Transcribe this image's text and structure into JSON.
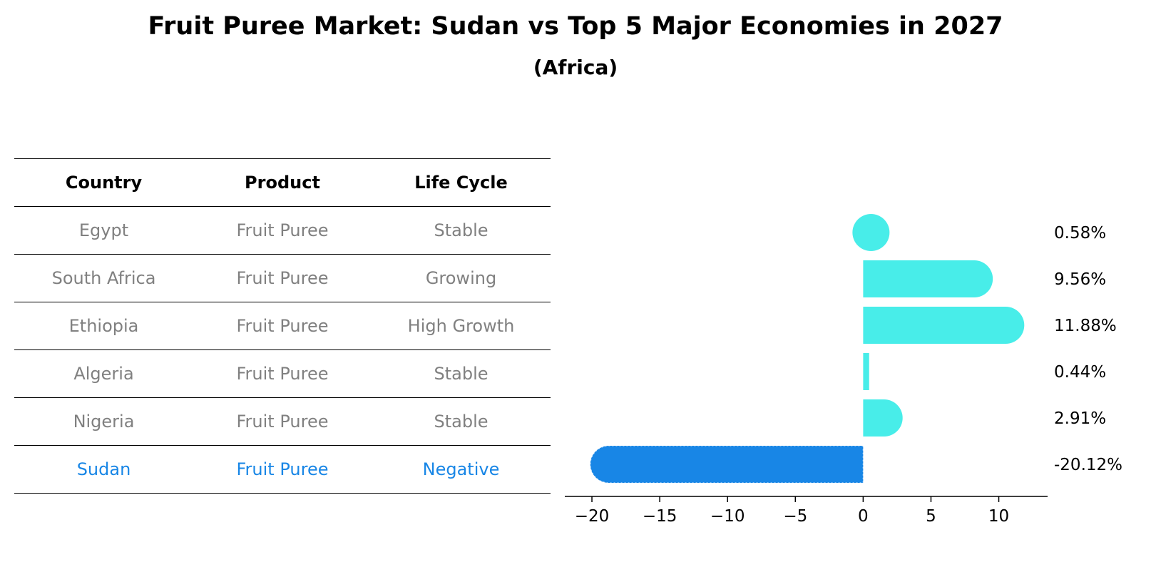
{
  "title": "Fruit Puree Market: Sudan vs Top 5 Major Economies in 2027",
  "subtitle": "(Africa)",
  "table": {
    "headers": [
      "Country",
      "Product",
      "Life Cycle"
    ],
    "rows": [
      {
        "country": "Egypt",
        "product": "Fruit Puree",
        "life_cycle": "Stable"
      },
      {
        "country": "South Africa",
        "product": "Fruit Puree",
        "life_cycle": "Growing"
      },
      {
        "country": "Ethiopia",
        "product": "Fruit Puree",
        "life_cycle": "High Growth"
      },
      {
        "country": "Algeria",
        "product": "Fruit Puree",
        "life_cycle": "Stable"
      },
      {
        "country": "Nigeria",
        "product": "Fruit Puree",
        "life_cycle": "Stable"
      },
      {
        "country": "Sudan",
        "product": "Fruit Puree",
        "life_cycle": "Negative"
      }
    ],
    "colors": {
      "text": "#808080",
      "highlight": "#1886e6",
      "header": "#000000"
    }
  },
  "chart_data": {
    "type": "bar",
    "orientation": "horizontal",
    "categories": [
      "Egypt",
      "South Africa",
      "Ethiopia",
      "Algeria",
      "Nigeria",
      "Sudan"
    ],
    "values": [
      0.58,
      9.56,
      11.88,
      0.44,
      2.91,
      -20.12
    ],
    "value_labels": [
      "0.58%",
      "9.56%",
      "11.88%",
      "0.44%",
      "2.91%",
      "-20.12%"
    ],
    "xticks": [
      -20,
      -15,
      -10,
      -5,
      0,
      5,
      10
    ],
    "xtick_labels": [
      "−20",
      "−15",
      "−10",
      "−5",
      "0",
      "5",
      "10"
    ],
    "xlim": [
      -22,
      13.6
    ],
    "grid": false,
    "highlight_category": "Sudan",
    "colors": {
      "default": "#48ede9",
      "highlight": "#1886e6"
    }
  }
}
